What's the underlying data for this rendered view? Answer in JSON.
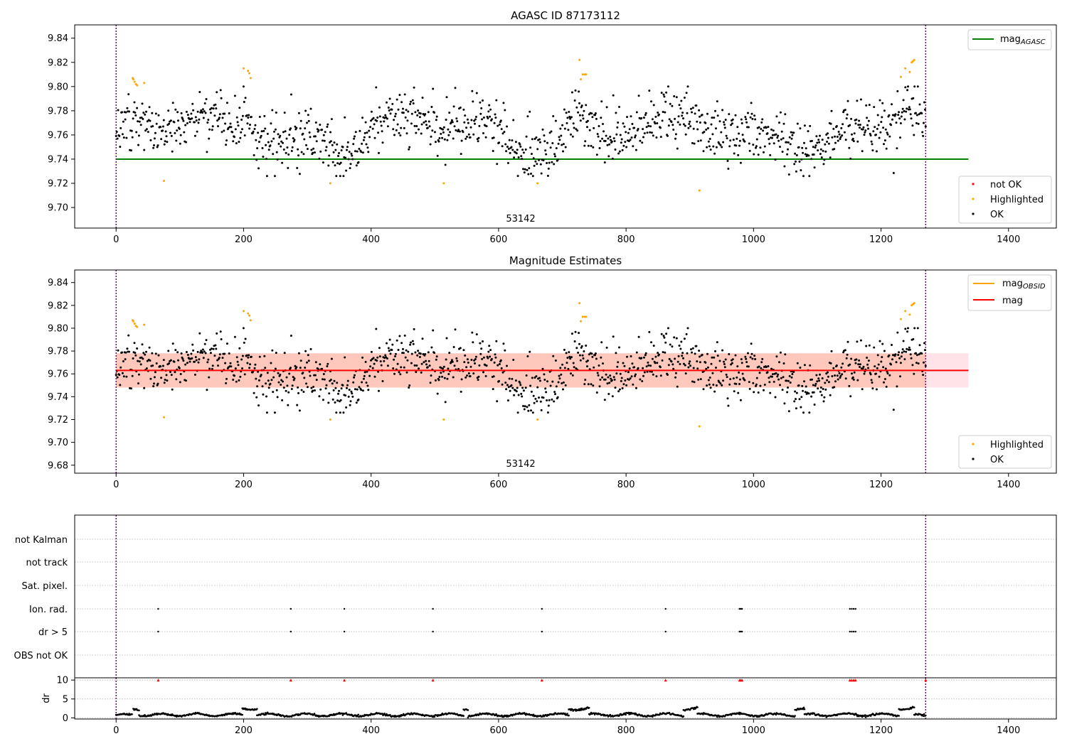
{
  "figure": {
    "colors": {
      "ok": "#000000",
      "highlighted": "#ffa500",
      "not_ok": "#ff0000",
      "agasc_line": "#008000",
      "mag_line": "#ff0000",
      "obsid_line": "#ffa500",
      "band_outer": "#ffc0cb",
      "band_inner": "#ffa07a",
      "vline": "#800080",
      "grid": "#b0b0b0"
    }
  },
  "chart_data": [
    {
      "type": "scatter",
      "title": "AGASC ID 87173112",
      "annotation": "53142",
      "xlim": [
        -65,
        1475
      ],
      "ylim": [
        9.683,
        9.851
      ],
      "xticks": [
        0,
        200,
        400,
        600,
        800,
        1000,
        1200,
        1400
      ],
      "yticks": [
        9.7,
        9.72,
        9.74,
        9.76,
        9.78,
        9.8,
        9.82,
        9.84
      ],
      "vlines": [
        0,
        1270
      ],
      "reference_lines": [
        {
          "name": "mag_AGASC",
          "y": 9.74,
          "x": [
            0,
            1337
          ]
        }
      ],
      "legend_lines": {
        "main": "mag",
        "sub": "AGASC",
        "position": "upper right"
      },
      "legend_points": {
        "entries": [
          "not OK",
          "Highlighted",
          "OK"
        ],
        "position": "lower right"
      },
      "ok_series": {
        "name": "OK",
        "n_points": 1240,
        "x_range": [
          0,
          1270
        ],
        "y_mean": 9.763,
        "y_spread": 0.011,
        "y_min": 9.726,
        "y_max": 9.8
      },
      "highlighted": [
        [
          26,
          9.807
        ],
        [
          27,
          9.806
        ],
        [
          29,
          9.804
        ],
        [
          31,
          9.802
        ],
        [
          33,
          9.801
        ],
        [
          44,
          9.803
        ],
        [
          75,
          9.722
        ],
        [
          200,
          9.815
        ],
        [
          207,
          9.813
        ],
        [
          209,
          9.811
        ],
        [
          211,
          9.807
        ],
        [
          336,
          9.72
        ],
        [
          514,
          9.72
        ],
        [
          661,
          9.72
        ],
        [
          727,
          9.822
        ],
        [
          729,
          9.806
        ],
        [
          732,
          9.81
        ],
        [
          735,
          9.81
        ],
        [
          737,
          9.81
        ],
        [
          915,
          9.714
        ],
        [
          1231,
          9.808
        ],
        [
          1238,
          9.815
        ],
        [
          1245,
          9.812
        ],
        [
          1248,
          9.82
        ],
        [
          1250,
          9.821
        ],
        [
          1252,
          9.822
        ]
      ],
      "not_ok": []
    },
    {
      "type": "scatter",
      "title": "Magnitude Estimates",
      "annotation": "53142",
      "xlim": [
        -65,
        1475
      ],
      "ylim": [
        9.673,
        9.851
      ],
      "xticks": [
        0,
        200,
        400,
        600,
        800,
        1000,
        1200,
        1400
      ],
      "yticks": [
        9.68,
        9.7,
        9.72,
        9.74,
        9.76,
        9.78,
        9.8,
        9.82,
        9.84
      ],
      "vlines": [
        0,
        1270
      ],
      "mag": {
        "name": "mag",
        "y": 9.763,
        "x": [
          0,
          1337
        ],
        "band_outer": [
          9.748,
          9.778
        ],
        "band_inner_x": [
          0,
          1270
        ]
      },
      "legend_lines": {
        "entries": [
          {
            "main": "mag",
            "sub": "OBSID"
          },
          {
            "main": "mag",
            "sub": ""
          }
        ],
        "position": "upper right"
      },
      "legend_points": {
        "entries": [
          "Highlighted",
          "OK"
        ],
        "position": "lower right"
      },
      "highlighted": [
        [
          26,
          9.807
        ],
        [
          27,
          9.806
        ],
        [
          29,
          9.804
        ],
        [
          31,
          9.802
        ],
        [
          33,
          9.801
        ],
        [
          44,
          9.803
        ],
        [
          75,
          9.722
        ],
        [
          200,
          9.815
        ],
        [
          207,
          9.813
        ],
        [
          209,
          9.811
        ],
        [
          211,
          9.807
        ],
        [
          336,
          9.72
        ],
        [
          514,
          9.72
        ],
        [
          661,
          9.72
        ],
        [
          727,
          9.822
        ],
        [
          729,
          9.806
        ],
        [
          732,
          9.81
        ],
        [
          735,
          9.81
        ],
        [
          737,
          9.81
        ],
        [
          915,
          9.714
        ],
        [
          1231,
          9.808
        ],
        [
          1238,
          9.815
        ],
        [
          1245,
          9.812
        ],
        [
          1248,
          9.82
        ],
        [
          1250,
          9.821
        ],
        [
          1252,
          9.822
        ]
      ]
    },
    {
      "type": "scatter",
      "title": "",
      "xlim": [
        -65,
        1475
      ],
      "xticks": [
        0,
        200,
        400,
        600,
        800,
        1000,
        1200,
        1400
      ],
      "vlines": [
        0,
        1270
      ],
      "flag_rows": [
        "not Kalman",
        "not track",
        "Sat. pixel.",
        "Ion. rad.",
        "dr > 5",
        "OBS not OK"
      ],
      "flag_points": {
        "Ion. rad.": [
          66,
          274,
          358,
          497,
          668,
          862,
          978,
          980,
          982,
          1151,
          1154,
          1157,
          1160
        ],
        "dr > 5": [
          66,
          274,
          358,
          497,
          668,
          862,
          978,
          980,
          982,
          1151,
          1154,
          1157,
          1160
        ]
      }
    },
    {
      "type": "scatter",
      "ylabel": "dr",
      "xlim": [
        -65,
        1475
      ],
      "ylim": [
        -0.3,
        10.6
      ],
      "yticks": [
        0,
        5,
        10
      ],
      "xticks": [
        0,
        200,
        400,
        600,
        800,
        1000,
        1200,
        1400
      ],
      "vlines": [
        0,
        1270
      ],
      "clipped_points": [
        66,
        274,
        358,
        497,
        668,
        862,
        978,
        980,
        982,
        1151,
        1154,
        1157,
        1160,
        1270
      ],
      "segments": [
        {
          "x": [
            0,
            25
          ],
          "level": 0.7
        },
        {
          "x": [
            27,
            36
          ],
          "level": 2.3
        },
        {
          "x": [
            36,
            198
          ],
          "level": 0.8
        },
        {
          "x": [
            198,
            221
          ],
          "level": 2.5
        },
        {
          "x": [
            221,
            370
          ],
          "level": 0.8
        },
        {
          "x": [
            370,
            545
          ],
          "level": 0.8
        },
        {
          "x": [
            545,
            552
          ],
          "level": 2.5
        },
        {
          "x": [
            552,
            710
          ],
          "level": 0.8
        },
        {
          "x": [
            710,
            742
          ],
          "level": 2.4
        },
        {
          "x": [
            742,
            890
          ],
          "level": 0.8
        },
        {
          "x": [
            890,
            912
          ],
          "level": 2.5
        },
        {
          "x": [
            912,
            1065
          ],
          "level": 0.8
        },
        {
          "x": [
            1065,
            1080
          ],
          "level": 2.4
        },
        {
          "x": [
            1080,
            1228
          ],
          "level": 0.8
        },
        {
          "x": [
            1228,
            1252
          ],
          "level": 2.5
        },
        {
          "x": [
            1252,
            1270
          ],
          "level": 0.6
        }
      ]
    }
  ]
}
